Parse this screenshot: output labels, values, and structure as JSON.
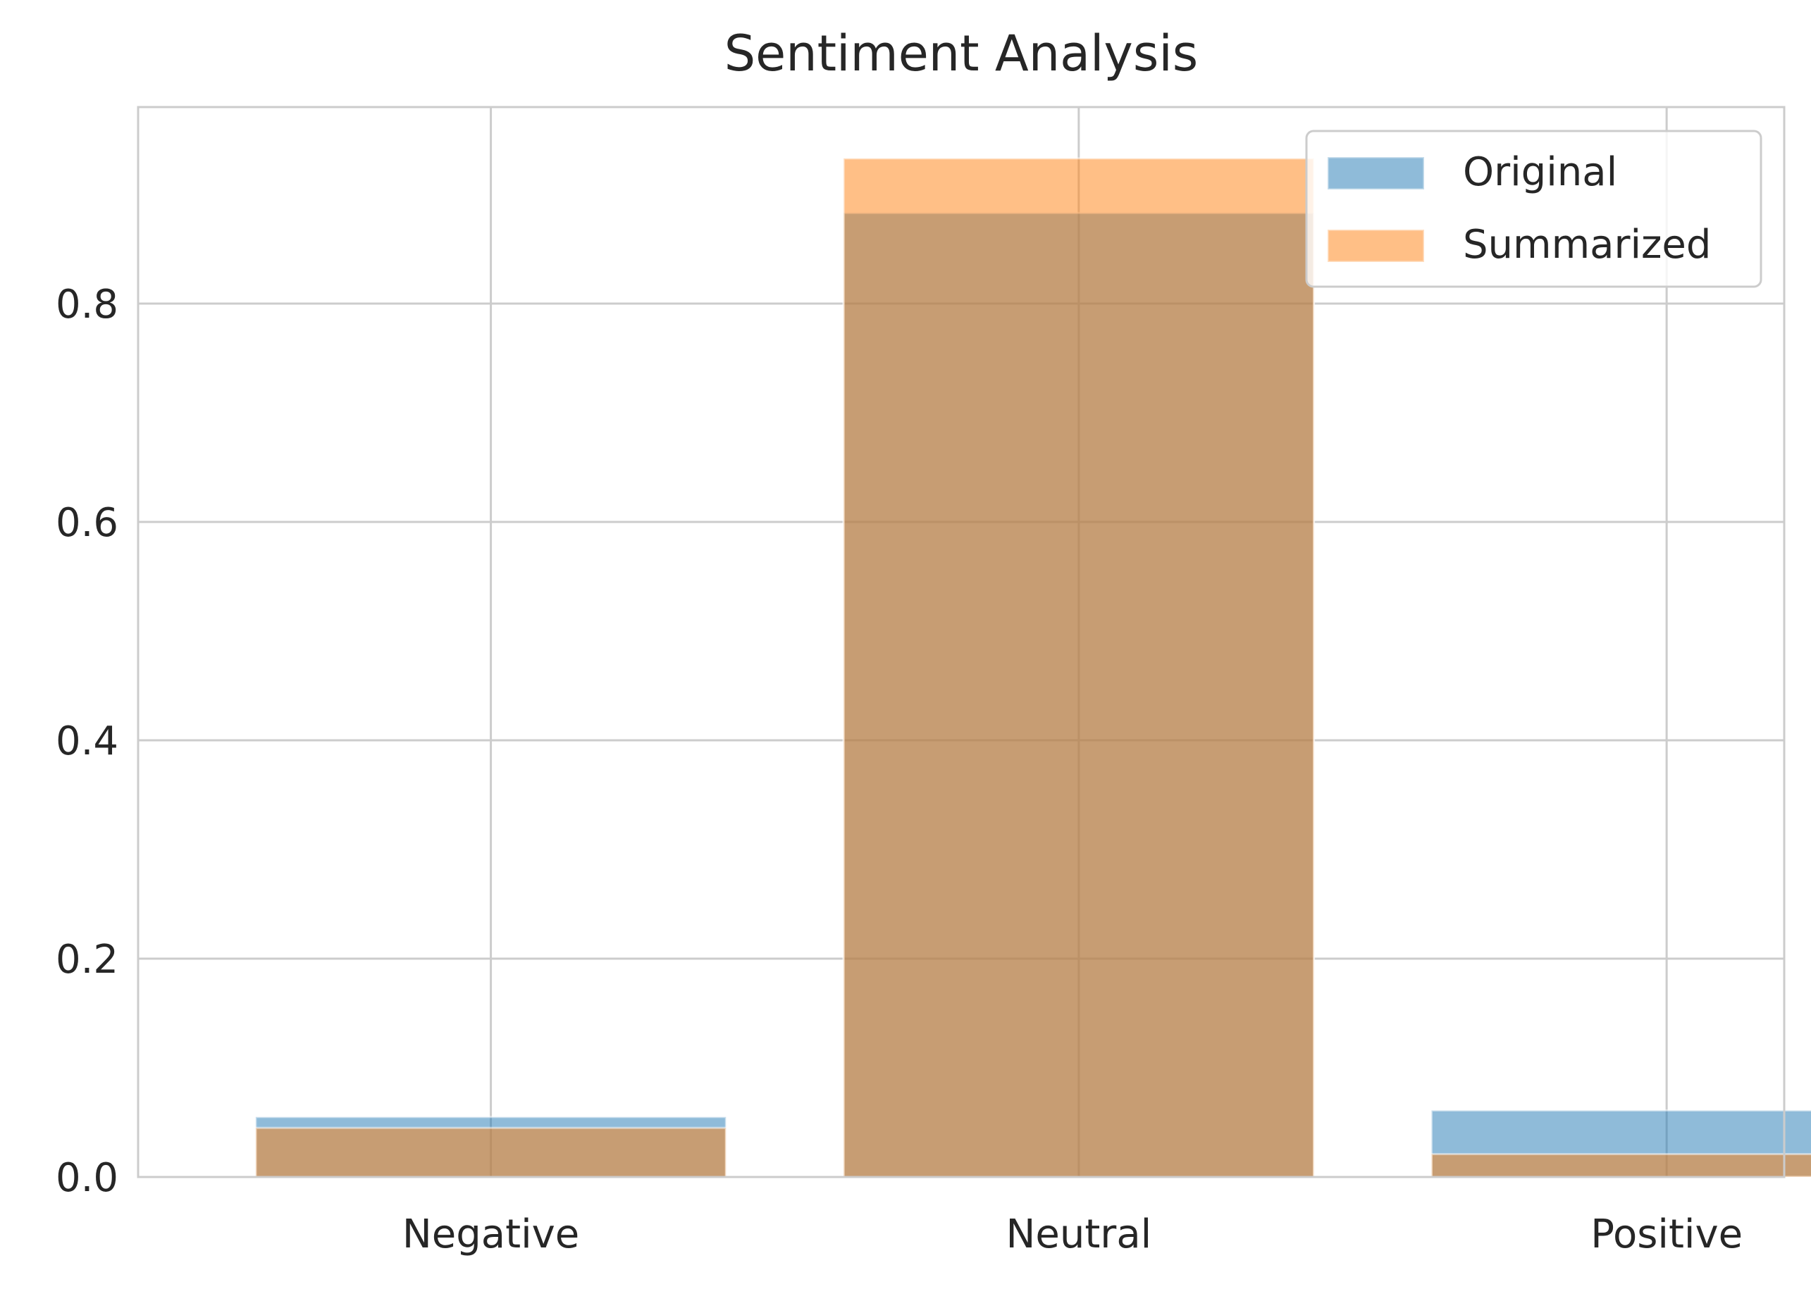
{
  "chart_data": {
    "type": "bar",
    "title": "Sentiment Analysis",
    "xlabel": "",
    "ylabel": "",
    "categories": [
      "Negative",
      "Neutral",
      "Positive"
    ],
    "series": [
      {
        "name": "Original",
        "values": [
          0.055,
          0.883,
          0.061
        ],
        "color": "#1f77b4",
        "opacity": 0.5
      },
      {
        "name": "Summarized",
        "values": [
          0.045,
          0.933,
          0.021
        ],
        "color": "#ff7f0e",
        "opacity": 0.5
      }
    ],
    "ylim": [
      0,
      0.98
    ],
    "yticks": [
      0.0,
      0.2,
      0.4,
      0.6,
      0.8
    ],
    "ytick_labels": [
      "0.0",
      "0.2",
      "0.4",
      "0.6",
      "0.8"
    ],
    "grid": true,
    "legend_position": "top-right",
    "overlay": true
  }
}
